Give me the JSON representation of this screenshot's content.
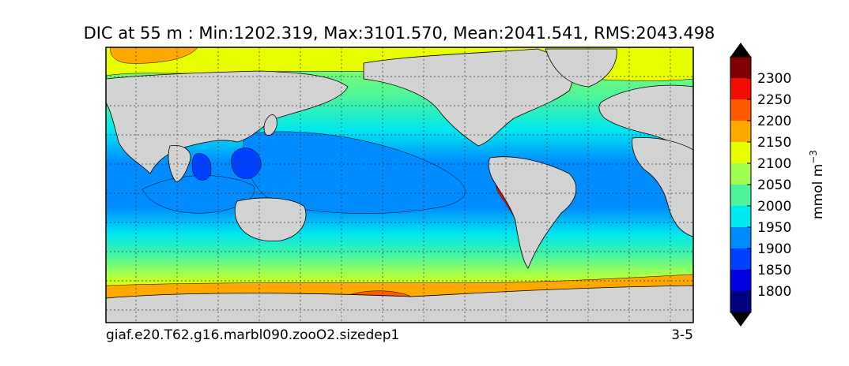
{
  "chart_data": {
    "type": "heatmap",
    "title": "DIC at 55 m : Min:1202.319, Max:3101.570, Mean:2041.541, RMS:2043.498",
    "case_label": "giaf.e20.T62.g16.marbl090.zooO2.sizedep1",
    "years_label": "3-5",
    "colorbar": {
      "unit_label": "mmol m",
      "unit_exponent": "−3",
      "ticks": [
        1800,
        1850,
        1900,
        1950,
        2000,
        2050,
        2100,
        2150,
        2200,
        2250,
        2300
      ],
      "tick_labels": [
        "1800",
        "1850",
        "1900",
        "1950",
        "2000",
        "2050",
        "2100",
        "2150",
        "2200",
        "2250",
        "2300"
      ],
      "colors": [
        "#000080",
        "#0000e0",
        "#0040ff",
        "#008cff",
        "#00e8f0",
        "#4cf59c",
        "#a0ff50",
        "#e8ff00",
        "#ffa800",
        "#ff5a00",
        "#f20c00",
        "#7f0000"
      ],
      "extend": "both"
    },
    "land_color": "#d3d3d3",
    "grid": true
  }
}
